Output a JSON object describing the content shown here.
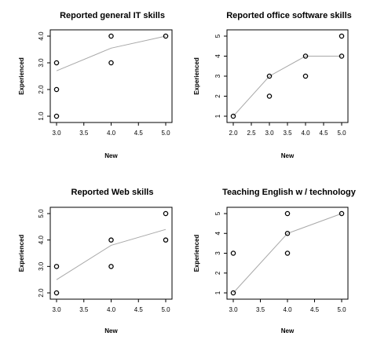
{
  "chart_data": [
    {
      "type": "scatter",
      "title": "Reported general IT skills",
      "xlabel": "New",
      "ylabel": "Experienced",
      "xlim": [
        3.0,
        5.0
      ],
      "ylim": [
        1.0,
        4.0
      ],
      "xticks": [
        "3.0",
        "3.5",
        "4.0",
        "4.5",
        "5.0"
      ],
      "yticks": [
        "1.0",
        "2.0",
        "3.0",
        "4.0"
      ],
      "points": [
        [
          3.0,
          1.0
        ],
        [
          3.0,
          2.0
        ],
        [
          3.0,
          3.0
        ],
        [
          4.0,
          3.0
        ],
        [
          4.0,
          4.0
        ],
        [
          5.0,
          4.0
        ]
      ],
      "trend": [
        [
          3.0,
          2.7
        ],
        [
          4.0,
          3.55
        ],
        [
          5.0,
          4.0
        ]
      ]
    },
    {
      "type": "scatter",
      "title": "Reported office software skills",
      "xlabel": "New",
      "ylabel": "Experienced",
      "xlim": [
        2.0,
        5.0
      ],
      "ylim": [
        1,
        5
      ],
      "xticks": [
        "2.0",
        "2.5",
        "3.0",
        "3.5",
        "4.0",
        "4.5",
        "5.0"
      ],
      "yticks": [
        "1",
        "2",
        "3",
        "4",
        "5"
      ],
      "points": [
        [
          2.0,
          1.0
        ],
        [
          3.0,
          2.0
        ],
        [
          3.0,
          3.0
        ],
        [
          4.0,
          3.0
        ],
        [
          4.0,
          4.0
        ],
        [
          5.0,
          4.0
        ],
        [
          5.0,
          5.0
        ]
      ],
      "trend": [
        [
          2.0,
          1.0
        ],
        [
          3.0,
          3.0
        ],
        [
          4.0,
          4.0
        ],
        [
          5.0,
          4.0
        ]
      ]
    },
    {
      "type": "scatter",
      "title": "Reported Web skills",
      "xlabel": "New",
      "ylabel": "Experienced",
      "xlim": [
        3.0,
        5.0
      ],
      "ylim": [
        2.0,
        5.0
      ],
      "xticks": [
        "3.0",
        "3.5",
        "4.0",
        "4.5",
        "5.0"
      ],
      "yticks": [
        "2.0",
        "3.0",
        "4.0",
        "5.0"
      ],
      "points": [
        [
          3.0,
          2.0
        ],
        [
          3.0,
          3.0
        ],
        [
          4.0,
          3.0
        ],
        [
          4.0,
          4.0
        ],
        [
          5.0,
          4.0
        ],
        [
          5.0,
          5.0
        ]
      ],
      "trend": [
        [
          3.0,
          2.5
        ],
        [
          4.0,
          3.8
        ],
        [
          5.0,
          4.4
        ]
      ]
    },
    {
      "type": "scatter",
      "title": "Teaching English w / technology",
      "xlabel": "New",
      "ylabel": "Experienced",
      "xlim": [
        3.0,
        5.0
      ],
      "ylim": [
        1,
        5
      ],
      "xticks": [
        "3.0",
        "3.5",
        "4.0",
        "4.5",
        "5.0"
      ],
      "yticks": [
        "1",
        "2",
        "3",
        "4",
        "5"
      ],
      "points": [
        [
          3.0,
          1.0
        ],
        [
          3.0,
          3.0
        ],
        [
          4.0,
          3.0
        ],
        [
          4.0,
          4.0
        ],
        [
          4.0,
          5.0
        ],
        [
          5.0,
          5.0
        ]
      ],
      "trend": [
        [
          3.0,
          1.0
        ],
        [
          4.0,
          4.0
        ],
        [
          5.0,
          5.0
        ]
      ]
    }
  ]
}
